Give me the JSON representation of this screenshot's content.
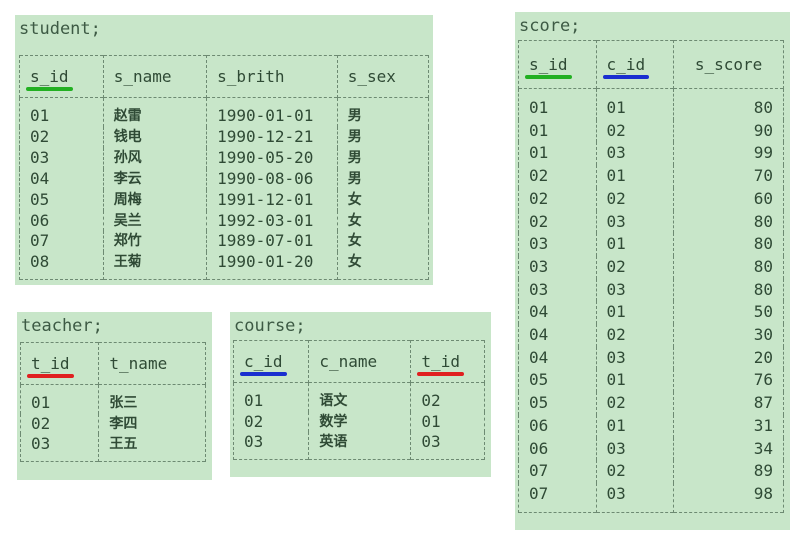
{
  "tables": [
    {
      "id": "student",
      "title": "student;",
      "columns": [
        "s_id",
        "s_name",
        "s_brith",
        "s_sex"
      ],
      "underline": {
        "s_id": "#22b022"
      },
      "rows": [
        [
          "01",
          "赵雷",
          "1990-01-01",
          "男"
        ],
        [
          "02",
          "钱电",
          "1990-12-21",
          "男"
        ],
        [
          "03",
          "孙风",
          "1990-05-20",
          "男"
        ],
        [
          "04",
          "李云",
          "1990-08-06",
          "男"
        ],
        [
          "05",
          "周梅",
          "1991-12-01",
          "女"
        ],
        [
          "06",
          "吴兰",
          "1992-03-01",
          "女"
        ],
        [
          "07",
          "郑竹",
          "1989-07-01",
          "女"
        ],
        [
          "08",
          "王菊",
          "1990-01-20",
          "女"
        ]
      ]
    },
    {
      "id": "teacher",
      "title": "teacher;",
      "columns": [
        "t_id",
        "t_name"
      ],
      "underline": {
        "t_id": "#e02020"
      },
      "rows": [
        [
          "01",
          "张三"
        ],
        [
          "02",
          "李四"
        ],
        [
          "03",
          "王五"
        ]
      ]
    },
    {
      "id": "course",
      "title": "course;",
      "columns": [
        "c_id",
        "c_name",
        "t_id"
      ],
      "underline": {
        "c_id": "#1a2fd0",
        "t_id": "#e02020"
      },
      "rows": [
        [
          "01",
          "语文",
          "02"
        ],
        [
          "02",
          "数学",
          "01"
        ],
        [
          "03",
          "英语",
          "03"
        ]
      ]
    },
    {
      "id": "score",
      "title": "score;",
      "columns": [
        "s_id",
        "c_id",
        "s_score"
      ],
      "underline": {
        "s_id": "#22b022",
        "c_id": "#1a2fd0"
      },
      "rows": [
        [
          "01",
          "01",
          "80"
        ],
        [
          "01",
          "02",
          "90"
        ],
        [
          "01",
          "03",
          "99"
        ],
        [
          "02",
          "01",
          "70"
        ],
        [
          "02",
          "02",
          "60"
        ],
        [
          "02",
          "03",
          "80"
        ],
        [
          "03",
          "01",
          "80"
        ],
        [
          "03",
          "02",
          "80"
        ],
        [
          "03",
          "03",
          "80"
        ],
        [
          "04",
          "01",
          "50"
        ],
        [
          "04",
          "02",
          "30"
        ],
        [
          "04",
          "03",
          "20"
        ],
        [
          "05",
          "01",
          "76"
        ],
        [
          "05",
          "02",
          "87"
        ],
        [
          "06",
          "01",
          "31"
        ],
        [
          "06",
          "03",
          "34"
        ],
        [
          "07",
          "02",
          "89"
        ],
        [
          "07",
          "03",
          "98"
        ]
      ]
    }
  ]
}
